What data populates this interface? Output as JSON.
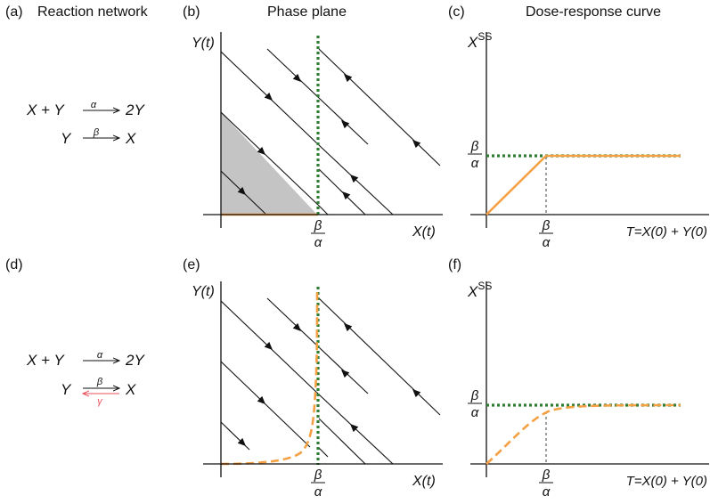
{
  "panels": {
    "a": {
      "label": "(a)",
      "title": "Reaction network"
    },
    "b": {
      "label": "(b)",
      "title": "Phase plane"
    },
    "c": {
      "label": "(c)",
      "title": "Dose-response curve"
    },
    "d": {
      "label": "(d)"
    },
    "e": {
      "label": "(e)"
    },
    "f": {
      "label": "(f)"
    }
  },
  "reactions": {
    "top": {
      "r1": {
        "lhs": "X + Y",
        "rate": "α",
        "rhs": "2Y"
      },
      "r2": {
        "lhs": "Y",
        "rate": "β",
        "rhs": "X"
      }
    },
    "bottom": {
      "r1": {
        "lhs": "X + Y",
        "rate": "α",
        "rhs": "2Y"
      },
      "r2": {
        "lhs": "Y",
        "rate_fwd": "β",
        "rate_back": "γ",
        "rhs": "X"
      }
    }
  },
  "axes": {
    "phase_y": "Y(t)",
    "phase_x": "X(t)",
    "dose_y": "X",
    "dose_y_sup": "SS",
    "dose_x": "T=X(0) + Y(0)",
    "frac_num": "β",
    "frac_den": "α"
  },
  "colors": {
    "nullcline": "#2e7d32",
    "steady_state": "#f4a043",
    "basin": "#c4c4c4",
    "gamma_reaction": "#e8525a"
  }
}
